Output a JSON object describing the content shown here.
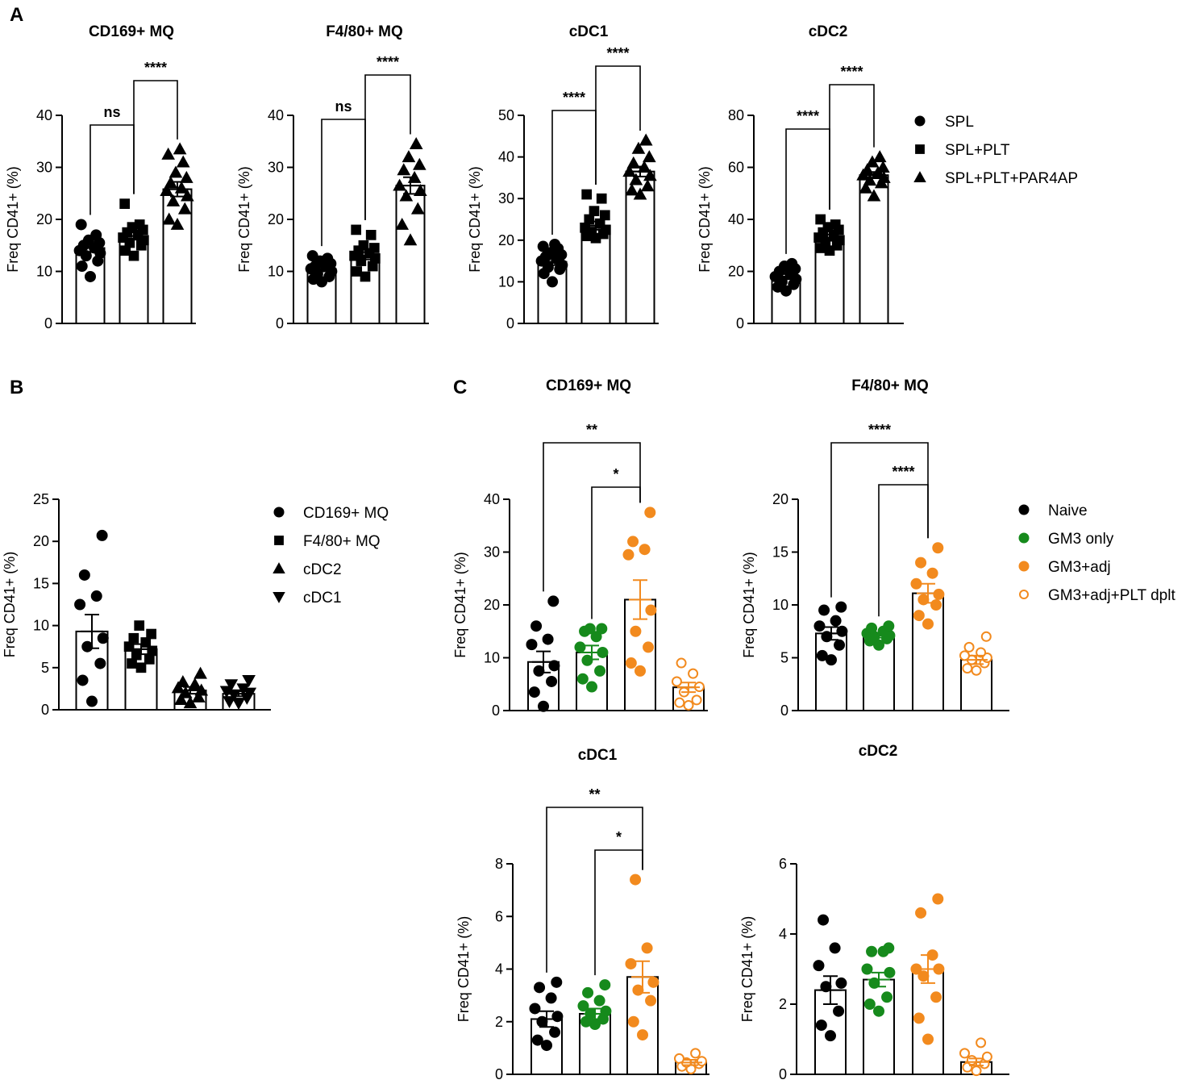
{
  "panels": {
    "a": "A",
    "b": "B",
    "c": "C"
  },
  "legend_a": [
    {
      "label": "SPL",
      "shape": "circle",
      "color": "#000000",
      "fill": true
    },
    {
      "label": "SPL+PLT",
      "shape": "square",
      "color": "#000000",
      "fill": true
    },
    {
      "label": "SPL+PLT+PAR4AP",
      "shape": "triangle",
      "color": "#000000",
      "fill": true
    }
  ],
  "legend_b": [
    {
      "label": "CD169+ MQ",
      "shape": "circle",
      "color": "#000000",
      "fill": true
    },
    {
      "label": "F4/80+ MQ",
      "shape": "square",
      "color": "#000000",
      "fill": true
    },
    {
      "label": "cDC2",
      "shape": "triangle",
      "color": "#000000",
      "fill": true
    },
    {
      "label": "cDC1",
      "shape": "triangle-down",
      "color": "#000000",
      "fill": true
    }
  ],
  "legend_c": [
    {
      "label": "Naive",
      "shape": "circle",
      "color": "#000000",
      "fill": true
    },
    {
      "label": "GM3 only",
      "shape": "circle",
      "color": "#168a1c",
      "fill": true
    },
    {
      "label": "GM3+adj",
      "shape": "circle",
      "color": "#f28a1e",
      "fill": true
    },
    {
      "label": "GM3+adj+PLT dplt",
      "shape": "circle",
      "color": "#f28a1e",
      "fill": false
    }
  ],
  "chart_data": [
    {
      "id": "a1",
      "type": "bar",
      "title": "CD169+ MQ",
      "ylabel": "Freq CD41+ (%)",
      "ylim": [
        0,
        40
      ],
      "yticks": [
        0,
        10,
        20,
        30,
        40
      ],
      "categories": [
        "SPL",
        "SPL+PLT",
        "SPL+PLT+PAR4AP"
      ],
      "series": [
        {
          "name": "SPL",
          "mean": 14.5,
          "sem": 0.8,
          "color": "#000000",
          "shape": "circle",
          "fill": true,
          "points": [
            9,
            11,
            12,
            13,
            13.5,
            14,
            14.5,
            15,
            15.5,
            16,
            17,
            19
          ]
        },
        {
          "name": "SPL+PLT",
          "mean": 16.8,
          "sem": 0.7,
          "color": "#000000",
          "shape": "square",
          "fill": true,
          "points": [
            13,
            14,
            15,
            15.5,
            16,
            16.5,
            17,
            17.5,
            18,
            18.5,
            19,
            23
          ]
        },
        {
          "name": "SPL+PLT+PAR4AP",
          "mean": 25.8,
          "sem": 1.4,
          "color": "#000000",
          "shape": "triangle",
          "fill": true,
          "points": [
            19,
            20,
            22,
            23.5,
            24.5,
            25.5,
            26,
            27,
            28,
            29,
            31,
            32.5,
            33.5
          ]
        }
      ],
      "significance": [
        {
          "label": "ns",
          "from": 0,
          "to": 1
        },
        {
          "label": "****",
          "from": 1,
          "to": 2
        }
      ]
    },
    {
      "id": "a2",
      "type": "bar",
      "title": "F4/80+ MQ",
      "ylabel": "Freq CD41+ (%)",
      "ylim": [
        0,
        40
      ],
      "yticks": [
        0,
        10,
        20,
        30,
        40
      ],
      "categories": [
        "SPL",
        "SPL+PLT",
        "SPL+PLT+PAR4AP"
      ],
      "series": [
        {
          "name": "SPL",
          "mean": 10.5,
          "sem": 0.5,
          "color": "#000000",
          "shape": "circle",
          "fill": true,
          "points": [
            8,
            8.5,
            9,
            9.5,
            10,
            10.5,
            11,
            11,
            11.5,
            12,
            12.5,
            13
          ]
        },
        {
          "name": "SPL+PLT",
          "mean": 13,
          "sem": 0.7,
          "color": "#000000",
          "shape": "square",
          "fill": true,
          "points": [
            9,
            10,
            11,
            12,
            12.5,
            13,
            13.5,
            14,
            14.5,
            15,
            17,
            18
          ]
        },
        {
          "name": "SPL+PLT+PAR4AP",
          "mean": 26.5,
          "sem": 1.6,
          "color": "#000000",
          "shape": "triangle",
          "fill": true,
          "points": [
            16,
            19,
            22,
            24.5,
            25.5,
            26.5,
            28,
            29.5,
            30.5,
            32,
            34.5
          ]
        }
      ],
      "significance": [
        {
          "label": "ns",
          "from": 0,
          "to": 1
        },
        {
          "label": "****",
          "from": 1,
          "to": 2
        }
      ]
    },
    {
      "id": "a3",
      "type": "bar",
      "title": "cDC1",
      "ylabel": "Freq CD41+ (%)",
      "ylim": [
        0,
        50
      ],
      "yticks": [
        0,
        10,
        20,
        30,
        40,
        50
      ],
      "categories": [
        "SPL",
        "SPL+PLT",
        "SPL+PLT+PAR4AP"
      ],
      "series": [
        {
          "name": "SPL",
          "mean": 14.8,
          "sem": 0.8,
          "color": "#000000",
          "shape": "circle",
          "fill": true,
          "points": [
            10,
            12,
            13,
            13.5,
            14,
            15,
            15.5,
            16,
            16.5,
            17,
            18,
            18.5,
            19
          ]
        },
        {
          "name": "SPL+PLT",
          "mean": 23.5,
          "sem": 1.0,
          "color": "#000000",
          "shape": "square",
          "fill": true,
          "points": [
            20.5,
            21,
            21.5,
            22,
            22.5,
            23,
            24,
            25,
            26,
            27,
            30,
            31
          ]
        },
        {
          "name": "SPL+PLT+PAR4AP",
          "mean": 36.5,
          "sem": 1.2,
          "color": "#000000",
          "shape": "triangle",
          "fill": true,
          "points": [
            31,
            32,
            33,
            34.5,
            35.5,
            36.5,
            37.5,
            38.5,
            40,
            42,
            44
          ]
        }
      ],
      "significance": [
        {
          "label": "****",
          "from": 0,
          "to": 1
        },
        {
          "label": "****",
          "from": 1,
          "to": 2
        }
      ]
    },
    {
      "id": "a4",
      "type": "bar",
      "title": "cDC2",
      "ylabel": "Freq CD41+ (%)",
      "ylim": [
        0,
        80
      ],
      "yticks": [
        0,
        20,
        40,
        60,
        80
      ],
      "categories": [
        "SPL",
        "SPL+PLT",
        "SPL+PLT+PAR4AP"
      ],
      "series": [
        {
          "name": "SPL",
          "mean": 18,
          "sem": 1.0,
          "color": "#000000",
          "shape": "circle",
          "fill": true,
          "points": [
            12.5,
            14,
            15,
            16,
            17,
            18,
            19,
            20,
            21,
            22,
            23
          ]
        },
        {
          "name": "SPL+PLT",
          "mean": 33,
          "sem": 1.2,
          "color": "#000000",
          "shape": "square",
          "fill": true,
          "points": [
            28,
            29,
            30,
            31,
            32,
            33,
            34,
            35,
            36,
            37,
            38,
            40
          ]
        },
        {
          "name": "SPL+PLT+PAR4AP",
          "mean": 57,
          "sem": 1.2,
          "color": "#000000",
          "shape": "triangle",
          "fill": true,
          "points": [
            49,
            52,
            54,
            55,
            56,
            57,
            58,
            59,
            60,
            62,
            64
          ]
        }
      ],
      "significance": [
        {
          "label": "****",
          "from": 0,
          "to": 1
        },
        {
          "label": "****",
          "from": 1,
          "to": 2
        }
      ]
    },
    {
      "id": "b",
      "type": "bar",
      "title": "",
      "ylabel": "Freq CD41+ (%)",
      "ylim": [
        0,
        25
      ],
      "yticks": [
        0,
        5,
        10,
        15,
        20,
        25
      ],
      "categories": [
        "CD169+ MQ",
        "F4/80+ MQ",
        "cDC2",
        "cDC1"
      ],
      "series": [
        {
          "name": "CD169+ MQ",
          "mean": 9.3,
          "sem": 2.0,
          "color": "#000000",
          "shape": "circle",
          "fill": true,
          "points": [
            1,
            3.5,
            5.5,
            7.5,
            8.5,
            12.5,
            13.5,
            16,
            20.7
          ]
        },
        {
          "name": "F4/80+ MQ",
          "mean": 7.2,
          "sem": 0.6,
          "color": "#000000",
          "shape": "square",
          "fill": true,
          "points": [
            5,
            5.5,
            6,
            6.5,
            7,
            7.5,
            8,
            8.5,
            9,
            10
          ]
        },
        {
          "name": "cDC2",
          "mean": 2.3,
          "sem": 0.4,
          "color": "#000000",
          "shape": "triangle",
          "fill": true,
          "points": [
            0.8,
            1.2,
            1.5,
            2,
            2.3,
            2.6,
            3,
            3.3,
            4.3
          ]
        },
        {
          "name": "cDC1",
          "mean": 1.9,
          "sem": 0.3,
          "color": "#000000",
          "shape": "triangle-down",
          "fill": true,
          "points": [
            0.8,
            1,
            1.4,
            1.8,
            2,
            2.2,
            2.5,
            3,
            3.5
          ]
        }
      ],
      "significance": []
    },
    {
      "id": "c1",
      "type": "bar",
      "title": "CD169+ MQ",
      "ylabel": "Freq CD41+ (%)",
      "ylim": [
        0,
        40
      ],
      "yticks": [
        0,
        10,
        20,
        30,
        40
      ],
      "categories": [
        "Naive",
        "GM3 only",
        "GM3+adj",
        "GM3+adj+PLT dplt"
      ],
      "series": [
        {
          "name": "Naive",
          "mean": 9.2,
          "sem": 2.0,
          "color": "#000000",
          "shape": "circle",
          "fill": true,
          "points": [
            0.8,
            3.5,
            5.5,
            7.5,
            8.5,
            12.5,
            13.5,
            16,
            20.7
          ]
        },
        {
          "name": "GM3 only",
          "mean": 11,
          "sem": 1.3,
          "color": "#168a1c",
          "shape": "circle",
          "fill": true,
          "points": [
            4.5,
            6,
            7.5,
            9.5,
            11,
            12,
            14,
            15,
            15.5,
            15.5
          ]
        },
        {
          "name": "GM3+adj",
          "mean": 21,
          "sem": 3.7,
          "color": "#f28a1e",
          "shape": "circle",
          "fill": true,
          "points": [
            7.5,
            9,
            12,
            15,
            19,
            29.5,
            30.5,
            32,
            37.5
          ]
        },
        {
          "name": "GM3+adj+PLT dplt",
          "mean": 4.4,
          "sem": 0.9,
          "color": "#f28a1e",
          "shape": "circle",
          "fill": false,
          "points": [
            1,
            1.5,
            2,
            3.5,
            4.5,
            5.5,
            7,
            9
          ]
        }
      ],
      "significance": [
        {
          "label": "**",
          "from": 0,
          "to": 2
        },
        {
          "label": "*",
          "from": 1,
          "to": 2
        }
      ]
    },
    {
      "id": "c2",
      "type": "bar",
      "title": "F4/80+ MQ",
      "ylabel": "Freq CD41+ (%)",
      "ylim": [
        0,
        20
      ],
      "yticks": [
        0,
        5,
        10,
        15,
        20
      ],
      "categories": [
        "Naive",
        "GM3 only",
        "GM3+adj",
        "GM3+adj+PLT dplt"
      ],
      "series": [
        {
          "name": "Naive",
          "mean": 7.3,
          "sem": 0.6,
          "color": "#000000",
          "shape": "circle",
          "fill": true,
          "points": [
            4.8,
            5.2,
            6.2,
            7,
            7.5,
            8,
            8.5,
            9.5,
            9.8
          ]
        },
        {
          "name": "GM3 only",
          "mean": 7.1,
          "sem": 0.2,
          "color": "#168a1c",
          "shape": "circle",
          "fill": true,
          "points": [
            6.2,
            6.6,
            6.8,
            7,
            7.1,
            7.3,
            7.5,
            7.8,
            8
          ]
        },
        {
          "name": "GM3+adj",
          "mean": 11.1,
          "sem": 0.9,
          "color": "#f28a1e",
          "shape": "circle",
          "fill": true,
          "points": [
            8.2,
            9,
            10,
            10.5,
            11,
            12,
            13,
            14,
            15.4
          ]
        },
        {
          "name": "GM3+adj+PLT dplt",
          "mean": 4.8,
          "sem": 0.4,
          "color": "#f28a1e",
          "shape": "circle",
          "fill": false,
          "points": [
            3.8,
            4,
            4.5,
            4.8,
            5,
            5.2,
            5.5,
            6,
            7
          ]
        }
      ],
      "significance": [
        {
          "label": "****",
          "from": 0,
          "to": 2
        },
        {
          "label": "****",
          "from": 1,
          "to": 2
        }
      ]
    },
    {
      "id": "c3",
      "type": "bar",
      "title": "cDC1",
      "ylabel": "Freq CD41+ (%)",
      "ylim": [
        0,
        8
      ],
      "yticks": [
        0,
        2,
        4,
        6,
        8
      ],
      "categories": [
        "Naive",
        "GM3 only",
        "GM3+adj",
        "GM3+adj+PLT dplt"
      ],
      "series": [
        {
          "name": "Naive",
          "mean": 2.1,
          "sem": 0.3,
          "color": "#000000",
          "shape": "circle",
          "fill": true,
          "points": [
            1.1,
            1.3,
            1.6,
            2,
            2.2,
            2.5,
            2.9,
            3.3,
            3.5
          ]
        },
        {
          "name": "GM3 only",
          "mean": 2.3,
          "sem": 0.2,
          "color": "#168a1c",
          "shape": "circle",
          "fill": true,
          "points": [
            1.9,
            2,
            2.1,
            2.3,
            2.4,
            2.6,
            2.8,
            3.1,
            3.4
          ]
        },
        {
          "name": "GM3+adj",
          "mean": 3.7,
          "sem": 0.6,
          "color": "#f28a1e",
          "shape": "circle",
          "fill": true,
          "points": [
            1.5,
            2,
            2.8,
            3.2,
            3.5,
            4.2,
            4.8,
            7.4
          ]
        },
        {
          "name": "GM3+adj+PLT dplt",
          "mean": 0.45,
          "sem": 0.1,
          "color": "#f28a1e",
          "shape": "circle",
          "fill": false,
          "points": [
            0.2,
            0.3,
            0.4,
            0.45,
            0.5,
            0.6,
            0.8
          ]
        }
      ],
      "significance": [
        {
          "label": "**",
          "from": 0,
          "to": 2
        },
        {
          "label": "*",
          "from": 1,
          "to": 2
        }
      ]
    },
    {
      "id": "c4",
      "type": "bar",
      "title": "cDC2",
      "ylabel": "Freq CD41+ (%)",
      "ylim": [
        0,
        6
      ],
      "yticks": [
        0,
        2,
        4,
        6
      ],
      "categories": [
        "Naive",
        "GM3 only",
        "GM3+adj",
        "GM3+adj+PLT dplt"
      ],
      "series": [
        {
          "name": "Naive",
          "mean": 2.4,
          "sem": 0.4,
          "color": "#000000",
          "shape": "circle",
          "fill": true,
          "points": [
            1.1,
            1.4,
            1.8,
            2.5,
            2.6,
            3.1,
            3.6,
            4.4
          ]
        },
        {
          "name": "GM3 only",
          "mean": 2.7,
          "sem": 0.2,
          "color": "#168a1c",
          "shape": "circle",
          "fill": true,
          "points": [
            1.8,
            2,
            2.2,
            2.6,
            2.9,
            3,
            3.5,
            3.5,
            3.6
          ]
        },
        {
          "name": "GM3+adj",
          "mean": 3.0,
          "sem": 0.4,
          "color": "#f28a1e",
          "shape": "circle",
          "fill": true,
          "points": [
            1,
            1.6,
            2.2,
            2.8,
            3,
            3,
            3.4,
            4.6,
            5
          ]
        },
        {
          "name": "GM3+adj+PLT dplt",
          "mean": 0.35,
          "sem": 0.1,
          "color": "#f28a1e",
          "shape": "circle",
          "fill": false,
          "points": [
            0.1,
            0.2,
            0.3,
            0.4,
            0.5,
            0.6,
            0.9
          ]
        }
      ],
      "significance": []
    }
  ]
}
